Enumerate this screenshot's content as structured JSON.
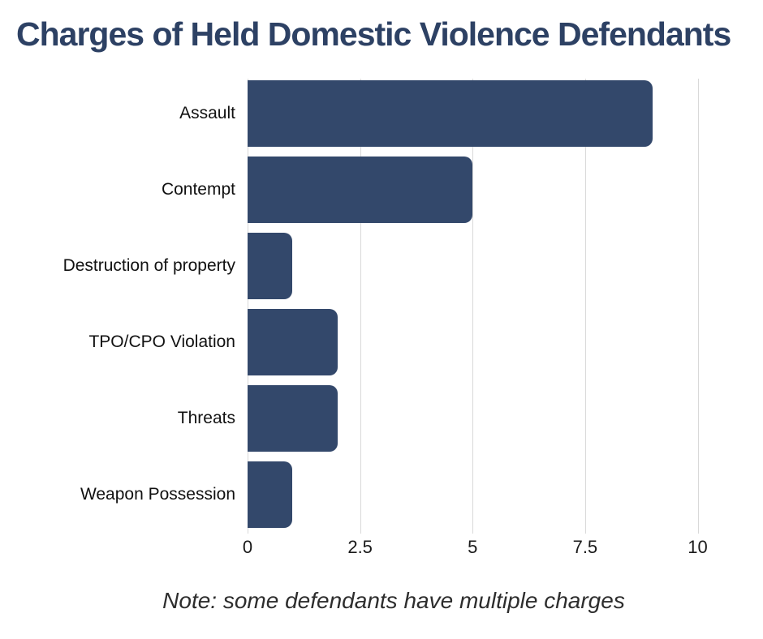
{
  "title": "Charges of Held Domestic Violence Defendants",
  "footnote": "Note: some defendants have multiple charges",
  "colors": {
    "title": "#2d4164",
    "bar": "#33486b",
    "gridline": "#d9d9d9",
    "category_label": "#111111",
    "tick_label": "#1a1a1a",
    "note": "#2d2d2d",
    "background": "#ffffff"
  },
  "chart_data": {
    "type": "bar",
    "orientation": "horizontal",
    "title": "Charges of Held Domestic Violence Defendants",
    "note": "Note: some defendants have multiple charges",
    "categories": [
      "Assault",
      "Contempt",
      "Destruction of property",
      "TPO/CPO Violation",
      "Threats",
      "Weapon Possession"
    ],
    "values": [
      9,
      5,
      1,
      2,
      2,
      1
    ],
    "xlabel": "",
    "ylabel": "",
    "xlim": [
      0,
      10
    ],
    "xticks": [
      0,
      2.5,
      5,
      7.5,
      10
    ],
    "xtick_labels": [
      "0",
      "2.5",
      "5",
      "7.5",
      "10"
    ],
    "grid": "vertical-gridlines-on",
    "legend": "none",
    "bar_color": "#33486b"
  }
}
